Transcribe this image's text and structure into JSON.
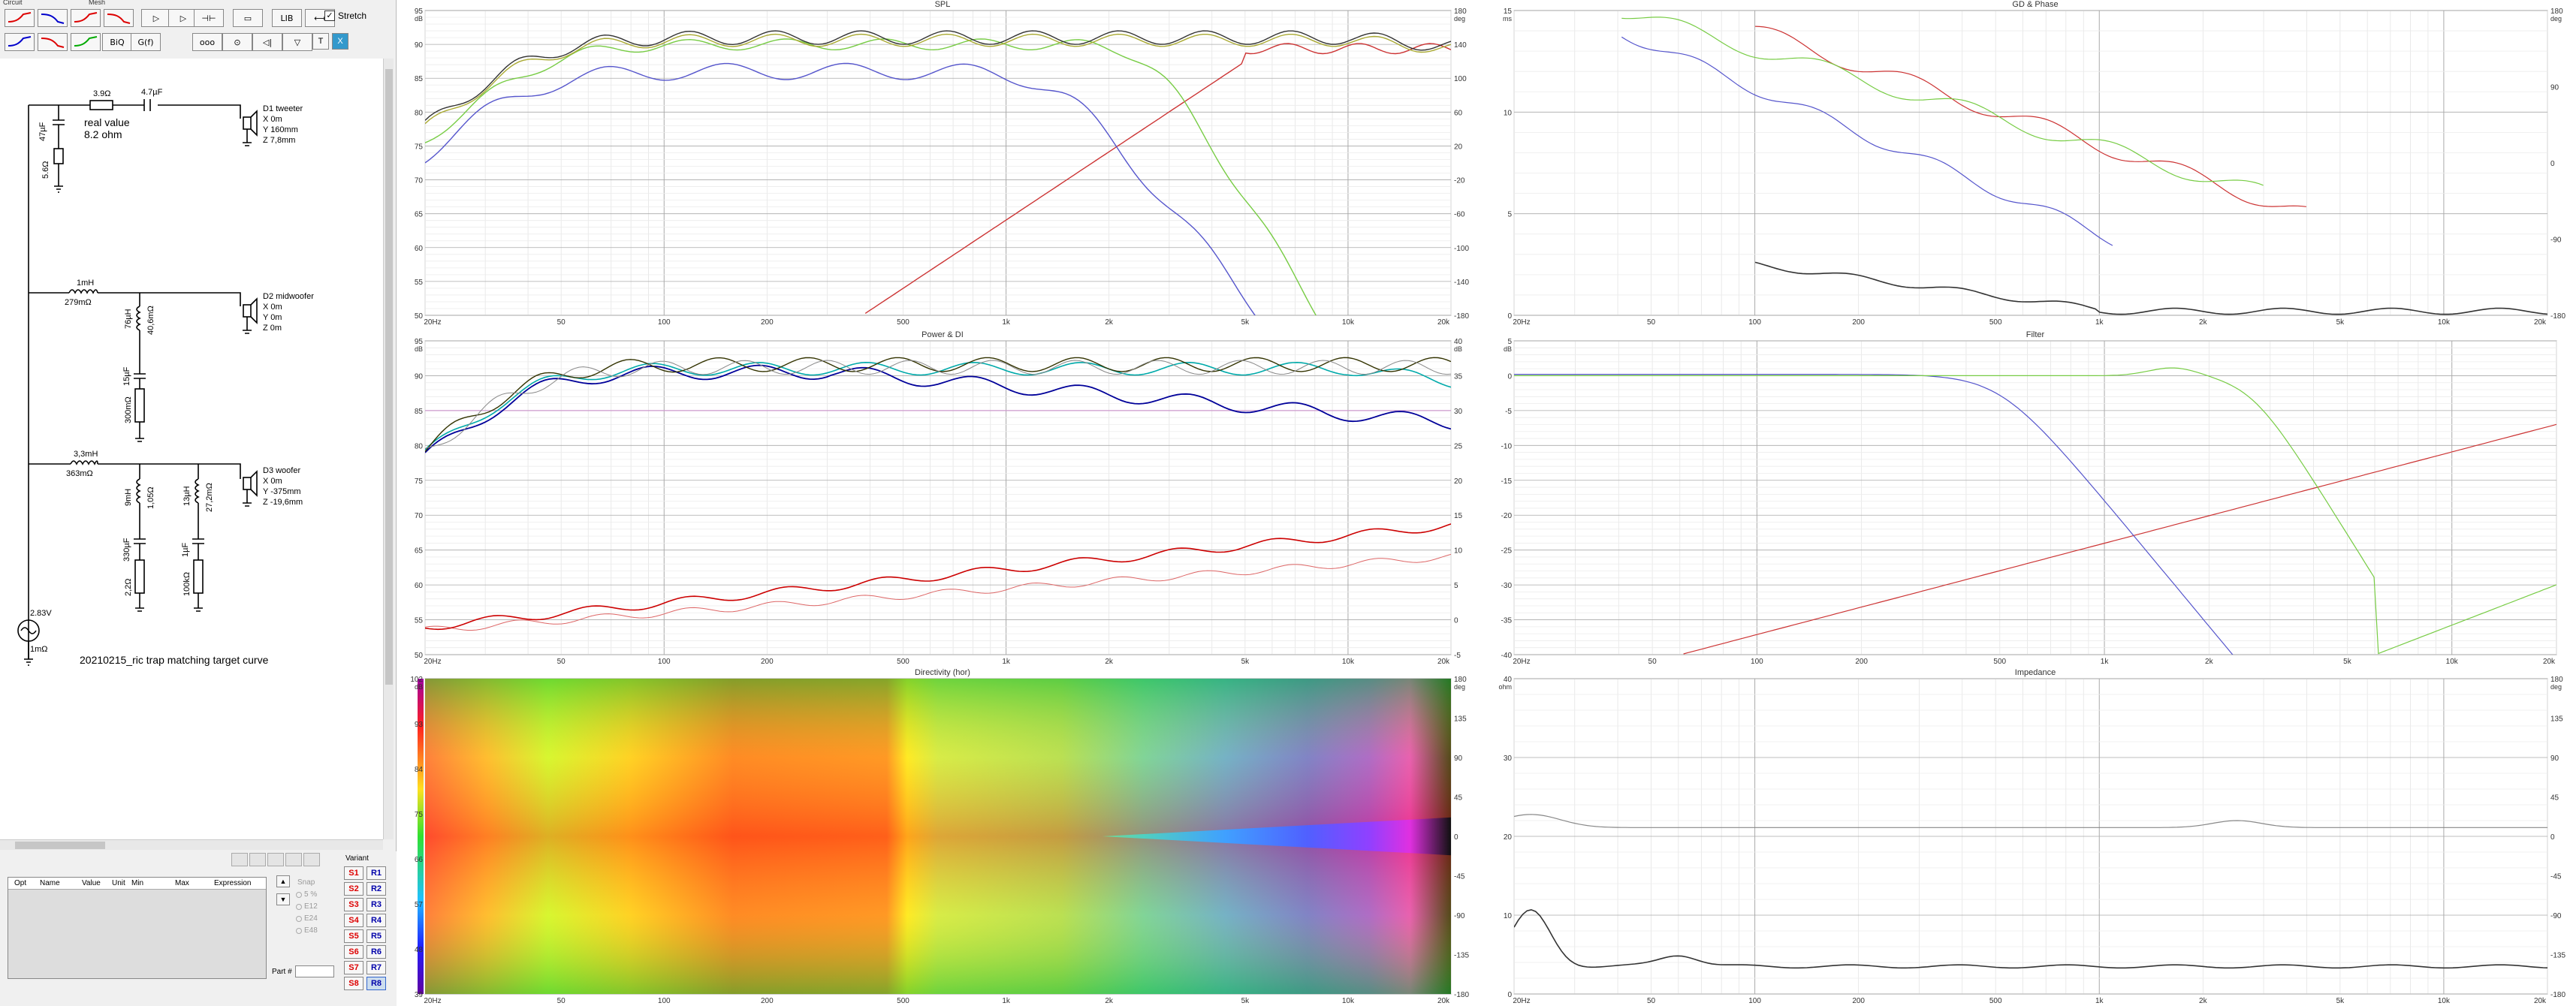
{
  "menu": [
    "Circuit",
    "Mesh"
  ],
  "toolbar": {
    "buttons": [
      {
        "name": "lowpass1-button",
        "color": "#d00"
      },
      {
        "name": "lowpass2-button",
        "color": "#00c"
      },
      {
        "name": "bandpass-button",
        "color": "#d00"
      },
      {
        "name": "highpass1-button",
        "color": "#d00"
      },
      {
        "name": "play-button",
        "label": "▷"
      },
      {
        "name": "forward-button",
        "label": "▷"
      },
      {
        "name": "capacitor-button",
        "label": "⊣⊢"
      },
      {
        "name": "resistor-button",
        "label": "▭"
      },
      {
        "name": "lib-button",
        "label": "LIB"
      },
      {
        "name": "link-button",
        "label": "⟷"
      },
      {
        "name": "shelf1-button",
        "color": "#00c"
      },
      {
        "name": "shelf2-button",
        "color": "#d00"
      },
      {
        "name": "shelf3-button",
        "color": "#0a0"
      },
      {
        "name": "biq-button",
        "label": "BiQ"
      },
      {
        "name": "gf-button",
        "label": "G(f)"
      },
      {
        "name": "coil-button",
        "label": "ooo"
      },
      {
        "name": "transformer-button",
        "label": "⊙"
      },
      {
        "name": "speaker-button",
        "label": "◁|"
      },
      {
        "name": "funnel-button",
        "label": "▽"
      },
      {
        "name": "t-button",
        "label": "T"
      },
      {
        "name": "x-button",
        "label": "X"
      }
    ],
    "stretch_label": "Stretch",
    "stretch_checked": "✓"
  },
  "schematic": {
    "title": "20210215_ric trap matching target curve",
    "note1": "real value",
    "note2": "8.2 ohm",
    "c1": "47µF",
    "r1": "3.9Ω",
    "c2": "4.7µF",
    "r2": "5.6Ω",
    "d1": [
      "D1 tweeter",
      "X 0m",
      "Y 160mm",
      "Z 7,8mm"
    ],
    "l1": "1mH",
    "l1r": "279mΩ",
    "l2": "76µH",
    "l2r": "40,6mΩ",
    "c3": "15µF",
    "r3": "300mΩ",
    "d2": [
      "D2 midwoofer",
      "X 0m",
      "Y 0m",
      "Z 0m"
    ],
    "l3": "3,3mH",
    "l3r": "363mΩ",
    "l4": "9mH",
    "l4r": "1,05Ω",
    "l5": "13µH",
    "l5r": "27,2mΩ",
    "c4": "330µF",
    "r4": "2,2Ω",
    "c5": "1µF",
    "r5": "100kΩ",
    "d3": [
      "D3 woofer",
      "X 0m",
      "Y -375mm",
      "Z -19,6mm"
    ],
    "src": "2.83V",
    "srcr": "1mΩ"
  },
  "params": {
    "headers": [
      "Opt",
      "Name",
      "Value",
      "Unit",
      "Min",
      "Max",
      "Expression"
    ]
  },
  "snap": {
    "label": "Snap",
    "options": [
      "5 %",
      "E12",
      "E24",
      "E48"
    ],
    "part_label": "Part #"
  },
  "variant": {
    "label": "Variant",
    "s": [
      "S1",
      "S2",
      "S3",
      "S4",
      "S5",
      "S6",
      "S7",
      "S8"
    ],
    "r": [
      "R1",
      "R2",
      "R3",
      "R4",
      "R5",
      "R6",
      "R7",
      "R8"
    ]
  },
  "xticks": [
    "20Hz",
    "50",
    "100",
    "200",
    "500",
    "1k",
    "2k",
    "5k",
    "10k",
    "20k"
  ],
  "spl": {
    "title": "SPL",
    "unit_l": "dB",
    "unit_r": "deg",
    "yl": [
      "95",
      "90",
      "85",
      "80",
      "75",
      "70",
      "65",
      "60",
      "55",
      "50"
    ],
    "yr": [
      "180",
      "140",
      "100",
      "60",
      "20",
      "-20",
      "-60",
      "-100",
      "-140",
      "-180"
    ]
  },
  "power": {
    "title": "Power & DI",
    "unit_l": "dB",
    "unit_r": "dB",
    "yl": [
      "95",
      "90",
      "85",
      "80",
      "75",
      "70",
      "65",
      "60",
      "55",
      "50"
    ],
    "yr": [
      "40",
      "35",
      "30",
      "25",
      "20",
      "15",
      "10",
      "5",
      "0",
      "-5"
    ]
  },
  "directivity": {
    "title": "Directivity (hor)",
    "unit_l": "dB",
    "unit_r": "deg",
    "yl": [
      "102",
      "93",
      "84",
      "75",
      "66",
      "57",
      "48",
      "39"
    ],
    "yr": [
      "180",
      "135",
      "90",
      "45",
      "0",
      "-45",
      "-90",
      "-135",
      "-180"
    ]
  },
  "gd": {
    "title": "GD & Phase",
    "unit_l": "ms",
    "unit_r": "deg",
    "yl": [
      "15",
      "10",
      "5",
      "0"
    ],
    "yr": [
      "180",
      "90",
      "0",
      "-90",
      "-180"
    ]
  },
  "filter": {
    "title": "Filter",
    "unit_l": "dB",
    "yl": [
      "5",
      "0",
      "-5",
      "-10",
      "-15",
      "-20",
      "-25",
      "-30",
      "-35",
      "-40"
    ]
  },
  "impedance": {
    "title": "Impedance",
    "unit_l": "ohm",
    "unit_r": "deg",
    "yl": [
      "40",
      "30",
      "20",
      "10",
      "0"
    ],
    "yr": [
      "180",
      "135",
      "90",
      "45",
      "0",
      "-45",
      "-90",
      "-135",
      "-180"
    ]
  }
}
